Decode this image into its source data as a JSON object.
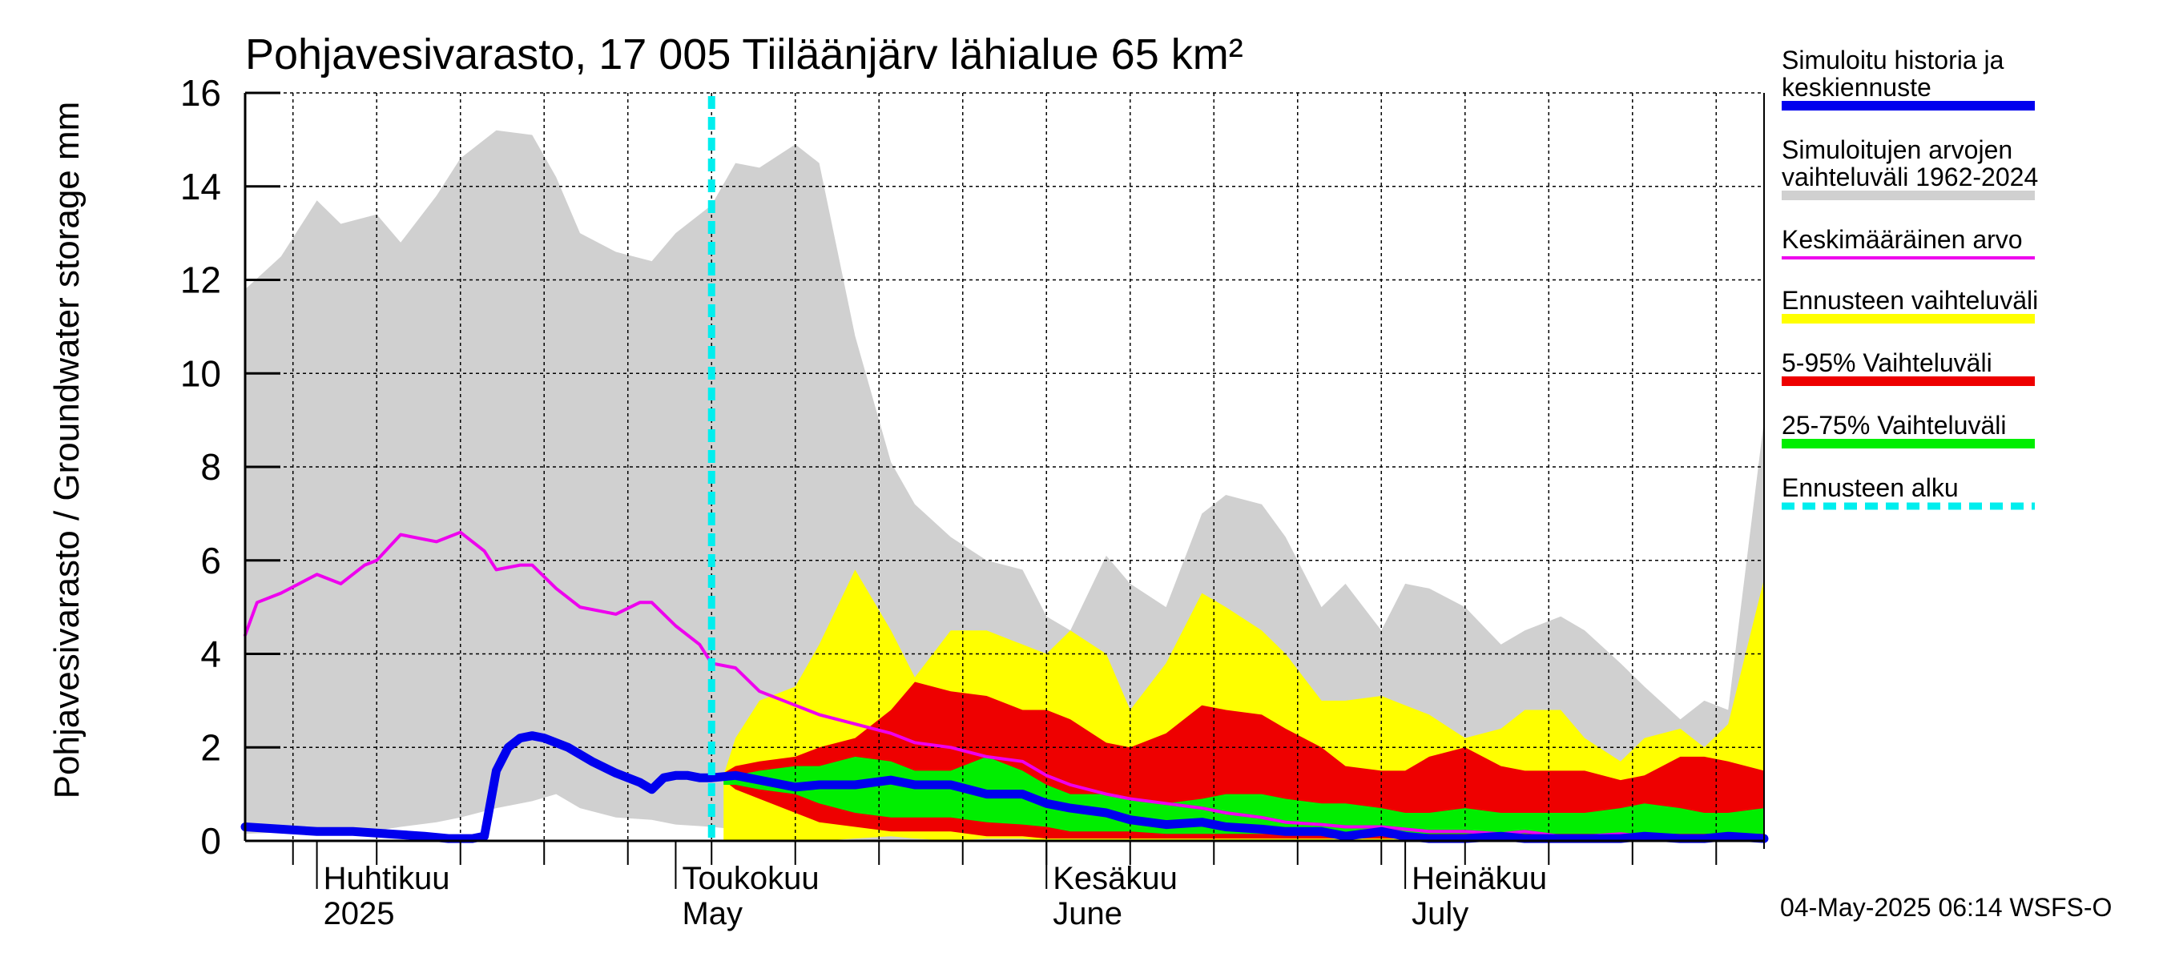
{
  "chart_data": {
    "type": "area",
    "title": "Pohjavesivarasto, 17 005 Tiiläänjärv lähialue 65 km²",
    "ylabel": "Pohjavesivarasto / Groundwater storage   mm",
    "ylim": [
      0,
      16
    ],
    "yticks": [
      "0",
      "2",
      "4",
      "6",
      "8",
      "10",
      "12",
      "14",
      "16"
    ],
    "x_start": "2025-03-26",
    "x_end": "2025-07-31",
    "forecast_start": "2025-05-04",
    "grid": true,
    "months": [
      {
        "label1": "Huhtikuu",
        "label2": "2025",
        "date": "2025-04-01"
      },
      {
        "label1": "Toukokuu",
        "label2": "May",
        "date": "2025-05-01"
      },
      {
        "label1": "Kesäkuu",
        "label2": "June",
        "date": "2025-06-01"
      },
      {
        "label1": "Heinäkuu",
        "label2": "July",
        "date": "2025-07-01"
      }
    ],
    "legend": [
      {
        "label": "Simuloitu historia ja keskiennuste",
        "lines": [
          "Simuloitu historia ja",
          "keskiennuste"
        ],
        "color": "#0000ee",
        "style": "solid"
      },
      {
        "label": "Simuloitujen arvojen vaihteluväli 1962-2024",
        "lines": [
          "Simuloitujen arvojen",
          "vaihteluväli 1962-2024"
        ],
        "color": "#d0d0d0",
        "style": "solid"
      },
      {
        "label": "Keskimääräinen arvo",
        "lines": [
          "Keskimääräinen arvo"
        ],
        "color": "#ee00ee",
        "style": "thin"
      },
      {
        "label": "Ennusteen vaihteluväli",
        "lines": [
          "Ennusteen vaihteluväli"
        ],
        "color": "#ffff00",
        "style": "solid"
      },
      {
        "label": "5-95% Vaihteluväli",
        "lines": [
          "5-95% Vaihteluväli"
        ],
        "color": "#ee0000",
        "style": "solid"
      },
      {
        "label": "25-75% Vaihteluväli",
        "lines": [
          "25-75% Vaihteluväli"
        ],
        "color": "#00ee00",
        "style": "solid"
      },
      {
        "label": "Ennusteen alku",
        "lines": [
          "Ennusteen alku"
        ],
        "color": "#00eeee",
        "style": "dashed"
      }
    ],
    "series": [
      {
        "key": "gray_band",
        "color": "#d0d0d0",
        "x": [
          "2025-03-26",
          "2025-03-29",
          "2025-04-01",
          "2025-04-03",
          "2025-04-06",
          "2025-04-08",
          "2025-04-11",
          "2025-04-13",
          "2025-04-16",
          "2025-04-19",
          "2025-04-21",
          "2025-04-23",
          "2025-04-26",
          "2025-04-29",
          "2025-05-01",
          "2025-05-04",
          "2025-05-06",
          "2025-05-08",
          "2025-05-11",
          "2025-05-13",
          "2025-05-16",
          "2025-05-19",
          "2025-05-21",
          "2025-05-24",
          "2025-05-27",
          "2025-05-30",
          "2025-06-01",
          "2025-06-03",
          "2025-06-06",
          "2025-06-08",
          "2025-06-11",
          "2025-06-14",
          "2025-06-16",
          "2025-06-19",
          "2025-06-21",
          "2025-06-24",
          "2025-06-26",
          "2025-06-29",
          "2025-07-01",
          "2025-07-03",
          "2025-07-06",
          "2025-07-09",
          "2025-07-11",
          "2025-07-14",
          "2025-07-16",
          "2025-07-19",
          "2025-07-21",
          "2025-07-24",
          "2025-07-26",
          "2025-07-28",
          "2025-07-31"
        ],
        "upper": [
          11.8,
          12.5,
          13.7,
          13.2,
          13.4,
          12.8,
          13.8,
          14.6,
          15.2,
          15.1,
          14.2,
          13.0,
          12.6,
          12.4,
          13.0,
          13.6,
          14.5,
          14.4,
          14.9,
          14.5,
          10.8,
          8.1,
          7.2,
          6.5,
          6.0,
          5.8,
          4.8,
          4.5,
          6.1,
          5.5,
          5.0,
          7.0,
          7.4,
          7.2,
          6.5,
          5.0,
          5.5,
          4.5,
          5.5,
          5.4,
          5.0,
          4.2,
          4.5,
          4.8,
          4.5,
          3.8,
          3.3,
          2.6,
          3.0,
          2.8,
          9.0
        ],
        "lower": [
          0.15,
          0.18,
          0.2,
          0.22,
          0.22,
          0.3,
          0.4,
          0.5,
          0.7,
          0.85,
          1.0,
          0.7,
          0.5,
          0.45,
          0.35,
          0.3,
          0.25,
          0.2,
          0.1,
          0.05,
          0.03,
          0.02,
          0.02,
          0.02,
          0.02,
          0.02,
          0.02,
          0.02,
          0.02,
          0.02,
          0.02,
          0.02,
          0.02,
          0.02,
          0.02,
          0.02,
          0.02,
          0.02,
          0.02,
          0.02,
          0.02,
          0.02,
          0.02,
          0.02,
          0.02,
          0.02,
          0.02,
          0.02,
          0.02,
          0.02,
          0.02
        ]
      },
      {
        "key": "yellow_band",
        "color": "#ffff00",
        "x": [
          "2025-05-05",
          "2025-05-06",
          "2025-05-08",
          "2025-05-11",
          "2025-05-13",
          "2025-05-16",
          "2025-05-19",
          "2025-05-21",
          "2025-05-24",
          "2025-05-27",
          "2025-05-30",
          "2025-06-01",
          "2025-06-03",
          "2025-06-06",
          "2025-06-08",
          "2025-06-11",
          "2025-06-14",
          "2025-06-16",
          "2025-06-19",
          "2025-06-21",
          "2025-06-24",
          "2025-06-26",
          "2025-06-29",
          "2025-07-01",
          "2025-07-03",
          "2025-07-06",
          "2025-07-09",
          "2025-07-11",
          "2025-07-14",
          "2025-07-16",
          "2025-07-19",
          "2025-07-21",
          "2025-07-24",
          "2025-07-26",
          "2025-07-28",
          "2025-07-31"
        ],
        "upper": [
          1.4,
          2.2,
          3.0,
          3.3,
          4.2,
          5.8,
          4.5,
          3.5,
          4.5,
          4.5,
          4.2,
          4.0,
          4.5,
          4.0,
          2.8,
          3.8,
          5.3,
          5.0,
          4.5,
          4.0,
          3.0,
          3.0,
          3.1,
          2.9,
          2.7,
          2.2,
          2.4,
          2.8,
          2.8,
          2.2,
          1.7,
          2.2,
          2.4,
          2.0,
          2.5,
          5.6
        ],
        "lower": [
          0.0,
          0.0,
          0.0,
          0.0,
          0.0,
          0.05,
          0.1,
          0.05,
          0.0,
          0.05,
          0.05,
          0.0,
          0.0,
          0.0,
          0.0,
          0.0,
          0.0,
          0.0,
          0.0,
          0.0,
          0.0,
          0.0,
          0.0,
          0.0,
          0.0,
          0.0,
          0.0,
          0.0,
          0.0,
          0.0,
          0.0,
          0.0,
          0.0,
          0.0,
          0.0,
          0.0
        ]
      },
      {
        "key": "red_band",
        "color": "#ee0000",
        "x": [
          "2025-05-05",
          "2025-05-06",
          "2025-05-08",
          "2025-05-11",
          "2025-05-13",
          "2025-05-16",
          "2025-05-19",
          "2025-05-21",
          "2025-05-24",
          "2025-05-27",
          "2025-05-30",
          "2025-06-01",
          "2025-06-03",
          "2025-06-06",
          "2025-06-08",
          "2025-06-11",
          "2025-06-14",
          "2025-06-16",
          "2025-06-19",
          "2025-06-21",
          "2025-06-24",
          "2025-06-26",
          "2025-06-29",
          "2025-07-01",
          "2025-07-03",
          "2025-07-06",
          "2025-07-09",
          "2025-07-11",
          "2025-07-14",
          "2025-07-16",
          "2025-07-19",
          "2025-07-21",
          "2025-07-24",
          "2025-07-26",
          "2025-07-28",
          "2025-07-31"
        ],
        "upper": [
          1.45,
          1.6,
          1.7,
          1.8,
          2.0,
          2.2,
          2.8,
          3.4,
          3.2,
          3.1,
          2.8,
          2.8,
          2.6,
          2.1,
          2.0,
          2.3,
          2.9,
          2.8,
          2.7,
          2.4,
          2.0,
          1.6,
          1.5,
          1.5,
          1.8,
          2.0,
          1.6,
          1.5,
          1.5,
          1.5,
          1.3,
          1.4,
          1.8,
          1.8,
          1.7,
          1.5
        ],
        "lower": [
          1.3,
          1.1,
          0.9,
          0.6,
          0.4,
          0.3,
          0.2,
          0.2,
          0.2,
          0.1,
          0.1,
          0.05,
          0.05,
          0.05,
          0.05,
          0.05,
          0.05,
          0.05,
          0.05,
          0.05,
          0.05,
          0.05,
          0.05,
          0.05,
          0.05,
          0.05,
          0.05,
          0.05,
          0.05,
          0.05,
          0.05,
          0.05,
          0.05,
          0.05,
          0.05,
          0.05
        ]
      },
      {
        "key": "green_band",
        "color": "#00ee00",
        "x": [
          "2025-05-05",
          "2025-05-06",
          "2025-05-08",
          "2025-05-11",
          "2025-05-13",
          "2025-05-16",
          "2025-05-19",
          "2025-05-21",
          "2025-05-24",
          "2025-05-27",
          "2025-05-30",
          "2025-06-01",
          "2025-06-03",
          "2025-06-06",
          "2025-06-08",
          "2025-06-11",
          "2025-06-14",
          "2025-06-16",
          "2025-06-19",
          "2025-06-21",
          "2025-06-24",
          "2025-06-26",
          "2025-06-29",
          "2025-07-01",
          "2025-07-03",
          "2025-07-06",
          "2025-07-09",
          "2025-07-11",
          "2025-07-14",
          "2025-07-16",
          "2025-07-19",
          "2025-07-21",
          "2025-07-24",
          "2025-07-26",
          "2025-07-28",
          "2025-07-31"
        ],
        "upper": [
          1.4,
          1.4,
          1.5,
          1.6,
          1.6,
          1.8,
          1.7,
          1.5,
          1.5,
          1.8,
          1.5,
          1.2,
          1.0,
          1.0,
          0.9,
          0.8,
          0.9,
          1.0,
          1.0,
          0.9,
          0.8,
          0.8,
          0.7,
          0.6,
          0.6,
          0.7,
          0.6,
          0.6,
          0.6,
          0.6,
          0.7,
          0.8,
          0.7,
          0.6,
          0.6,
          0.7
        ],
        "lower": [
          1.2,
          1.2,
          1.1,
          1.0,
          0.8,
          0.6,
          0.5,
          0.5,
          0.5,
          0.4,
          0.35,
          0.3,
          0.2,
          0.2,
          0.2,
          0.15,
          0.15,
          0.15,
          0.15,
          0.15,
          0.15,
          0.15,
          0.15,
          0.15,
          0.15,
          0.15,
          0.15,
          0.15,
          0.15,
          0.15,
          0.15,
          0.15,
          0.15,
          0.15,
          0.15,
          0.15
        ]
      },
      {
        "key": "mean",
        "name": "Keskimääräinen arvo",
        "color": "#ee00ee",
        "x": [
          "2025-03-26",
          "2025-03-27",
          "2025-03-29",
          "2025-04-01",
          "2025-04-03",
          "2025-04-05",
          "2025-04-06",
          "2025-04-08",
          "2025-04-11",
          "2025-04-13",
          "2025-04-15",
          "2025-04-16",
          "2025-04-18",
          "2025-04-19",
          "2025-04-21",
          "2025-04-23",
          "2025-04-26",
          "2025-04-28",
          "2025-04-29",
          "2025-05-01",
          "2025-05-03",
          "2025-05-04",
          "2025-05-06",
          "2025-05-08",
          "2025-05-11",
          "2025-05-13",
          "2025-05-16",
          "2025-05-19",
          "2025-05-21",
          "2025-05-24",
          "2025-05-27",
          "2025-05-30",
          "2025-06-01",
          "2025-06-03",
          "2025-06-06",
          "2025-06-08",
          "2025-06-11",
          "2025-06-14",
          "2025-06-16",
          "2025-06-19",
          "2025-06-21",
          "2025-06-24",
          "2025-06-26",
          "2025-06-29",
          "2025-07-01",
          "2025-07-03",
          "2025-07-06",
          "2025-07-09",
          "2025-07-11",
          "2025-07-14",
          "2025-07-16",
          "2025-07-19",
          "2025-07-21",
          "2025-07-24",
          "2025-07-26",
          "2025-07-28",
          "2025-07-31"
        ],
        "values": [
          4.4,
          5.1,
          5.3,
          5.7,
          5.5,
          5.9,
          6.0,
          6.55,
          6.4,
          6.6,
          6.2,
          5.8,
          5.9,
          5.9,
          5.4,
          5.0,
          4.85,
          5.1,
          5.1,
          4.6,
          4.2,
          3.8,
          3.7,
          3.2,
          2.9,
          2.7,
          2.5,
          2.3,
          2.1,
          2.0,
          1.8,
          1.7,
          1.4,
          1.2,
          1.0,
          0.9,
          0.8,
          0.7,
          0.6,
          0.5,
          0.4,
          0.35,
          0.3,
          0.3,
          0.25,
          0.2,
          0.2,
          0.15,
          0.2,
          0.1,
          0.1,
          0.15,
          0.1,
          0.05,
          0.05,
          0.1,
          0.1
        ]
      },
      {
        "key": "history",
        "name": "Simuloitu historia ja keskiennuste",
        "color": "#0000ee",
        "x": [
          "2025-03-26",
          "2025-03-29",
          "2025-04-01",
          "2025-04-04",
          "2025-04-07",
          "2025-04-10",
          "2025-04-12",
          "2025-04-14",
          "2025-04-15",
          "2025-04-16",
          "2025-04-17",
          "2025-04-18",
          "2025-04-19",
          "2025-04-20",
          "2025-04-22",
          "2025-04-24",
          "2025-04-26",
          "2025-04-28",
          "2025-04-29",
          "2025-04-30",
          "2025-05-01",
          "2025-05-02",
          "2025-05-03",
          "2025-05-04",
          "2025-05-06",
          "2025-05-08",
          "2025-05-11",
          "2025-05-13",
          "2025-05-16",
          "2025-05-19",
          "2025-05-21",
          "2025-05-24",
          "2025-05-27",
          "2025-05-30",
          "2025-06-01",
          "2025-06-03",
          "2025-06-06",
          "2025-06-08",
          "2025-06-11",
          "2025-06-14",
          "2025-06-16",
          "2025-06-19",
          "2025-06-21",
          "2025-06-24",
          "2025-06-26",
          "2025-06-29",
          "2025-07-01",
          "2025-07-03",
          "2025-07-06",
          "2025-07-09",
          "2025-07-11",
          "2025-07-14",
          "2025-07-16",
          "2025-07-19",
          "2025-07-21",
          "2025-07-24",
          "2025-07-26",
          "2025-07-28",
          "2025-07-31"
        ],
        "values": [
          0.3,
          0.25,
          0.2,
          0.2,
          0.15,
          0.1,
          0.05,
          0.05,
          0.1,
          1.5,
          2.0,
          2.2,
          2.25,
          2.2,
          2.0,
          1.7,
          1.45,
          1.25,
          1.1,
          1.35,
          1.4,
          1.4,
          1.35,
          1.35,
          1.4,
          1.3,
          1.15,
          1.2,
          1.2,
          1.3,
          1.2,
          1.2,
          1.0,
          1.0,
          0.8,
          0.7,
          0.6,
          0.45,
          0.35,
          0.4,
          0.3,
          0.25,
          0.2,
          0.2,
          0.1,
          0.2,
          0.1,
          0.05,
          0.05,
          0.1,
          0.05,
          0.05,
          0.05,
          0.05,
          0.1,
          0.05,
          0.05,
          0.1,
          0.05
        ]
      }
    ]
  },
  "footer": "04-May-2025 06:14 WSFS-O"
}
